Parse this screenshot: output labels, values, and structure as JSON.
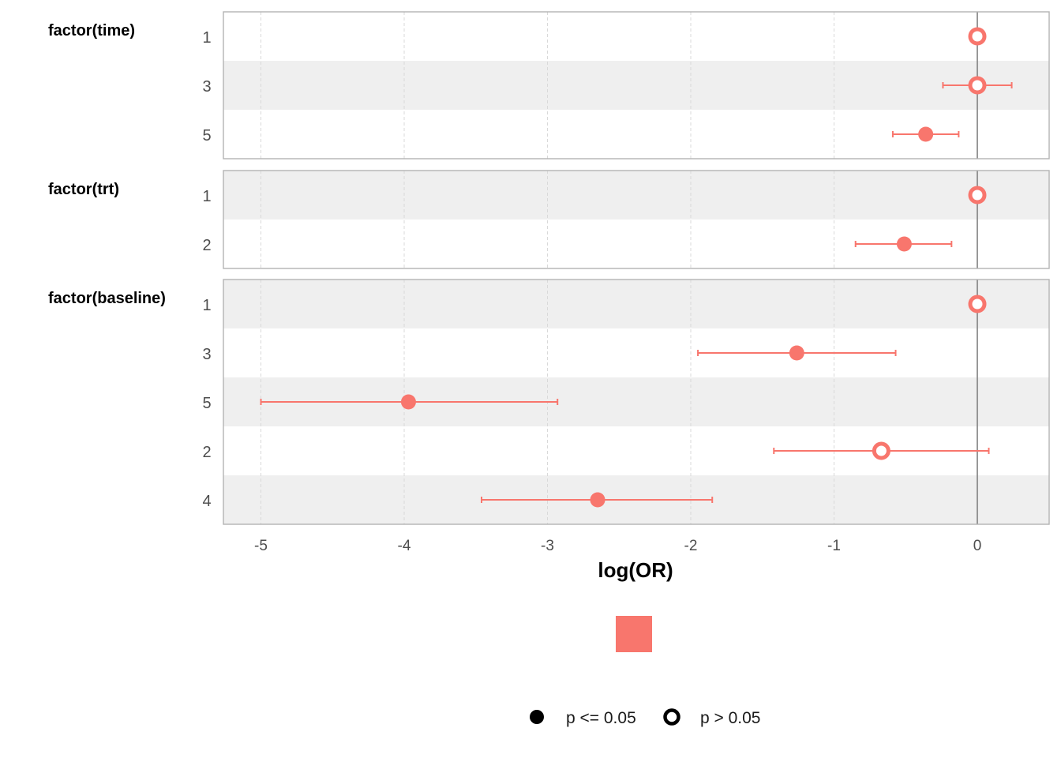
{
  "chart_data": {
    "type": "forest",
    "xlabel": "log(OR)",
    "xlim": [
      -5.25,
      0.5
    ],
    "xticks": [
      -5,
      -4,
      -3,
      -2,
      -1,
      0
    ],
    "reference_line": 0,
    "colors": {
      "point": "#F8766D",
      "stripe": "#efefef",
      "panel_border": "#b3b3b3",
      "reference": "#7f7f7f",
      "grid": "#d9d9d9"
    },
    "groups": [
      {
        "name": "factor(time)",
        "rows": [
          {
            "level": "1",
            "estimate": 0.0,
            "lower": null,
            "upper": null,
            "significant": false
          },
          {
            "level": "3",
            "estimate": 0.0,
            "lower": -0.24,
            "upper": 0.24,
            "significant": false
          },
          {
            "level": "5",
            "estimate": -0.36,
            "lower": -0.59,
            "upper": -0.13,
            "significant": true
          }
        ]
      },
      {
        "name": "factor(trt)",
        "rows": [
          {
            "level": "1",
            "estimate": 0.0,
            "lower": null,
            "upper": null,
            "significant": false
          },
          {
            "level": "2",
            "estimate": -0.51,
            "lower": -0.85,
            "upper": -0.18,
            "significant": true
          }
        ]
      },
      {
        "name": "factor(baseline)",
        "rows": [
          {
            "level": "1",
            "estimate": 0.0,
            "lower": null,
            "upper": null,
            "significant": false
          },
          {
            "level": "3",
            "estimate": -1.26,
            "lower": -1.95,
            "upper": -0.57,
            "significant": true
          },
          {
            "level": "5",
            "estimate": -3.97,
            "lower": -5.0,
            "upper": -2.93,
            "significant": true
          },
          {
            "level": "2",
            "estimate": -0.67,
            "lower": -1.42,
            "upper": 0.08,
            "significant": false
          },
          {
            "level": "4",
            "estimate": -2.65,
            "lower": -3.46,
            "upper": -1.85,
            "significant": true
          }
        ]
      }
    ],
    "legend": {
      "placement": "bottom",
      "items": [
        {
          "label": "p <= 0.05",
          "shape": "filled-circle"
        },
        {
          "label": "p > 0.05",
          "shape": "open-circle"
        }
      ]
    }
  }
}
